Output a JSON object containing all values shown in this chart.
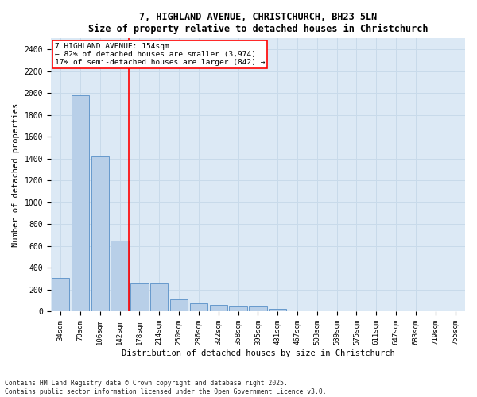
{
  "title_line1": "7, HIGHLAND AVENUE, CHRISTCHURCH, BH23 5LN",
  "title_line2": "Size of property relative to detached houses in Christchurch",
  "xlabel": "Distribution of detached houses by size in Christchurch",
  "ylabel": "Number of detached properties",
  "categories": [
    "34sqm",
    "70sqm",
    "106sqm",
    "142sqm",
    "178sqm",
    "214sqm",
    "250sqm",
    "286sqm",
    "322sqm",
    "358sqm",
    "395sqm",
    "431sqm",
    "467sqm",
    "503sqm",
    "539sqm",
    "575sqm",
    "611sqm",
    "647sqm",
    "683sqm",
    "719sqm",
    "755sqm"
  ],
  "values": [
    310,
    1980,
    1420,
    650,
    260,
    255,
    110,
    75,
    60,
    50,
    45,
    25,
    5,
    0,
    0,
    0,
    0,
    0,
    0,
    0,
    0
  ],
  "bar_color": "#b8cfe8",
  "bar_edge_color": "#6699cc",
  "grid_color": "#c8daea",
  "plot_bg_color": "#dce9f5",
  "fig_bg_color": "#ffffff",
  "property_line_x": 3.45,
  "annotation_title": "7 HIGHLAND AVENUE: 154sqm",
  "annotation_line2": "← 82% of detached houses are smaller (3,974)",
  "annotation_line3": "17% of semi-detached houses are larger (842) →",
  "ylim": [
    0,
    2500
  ],
  "yticks": [
    0,
    200,
    400,
    600,
    800,
    1000,
    1200,
    1400,
    1600,
    1800,
    2000,
    2200,
    2400
  ],
  "footer_line1": "Contains HM Land Registry data © Crown copyright and database right 2025.",
  "footer_line2": "Contains public sector information licensed under the Open Government Licence v3.0.",
  "fig_width": 6.0,
  "fig_height": 5.0,
  "dpi": 100
}
